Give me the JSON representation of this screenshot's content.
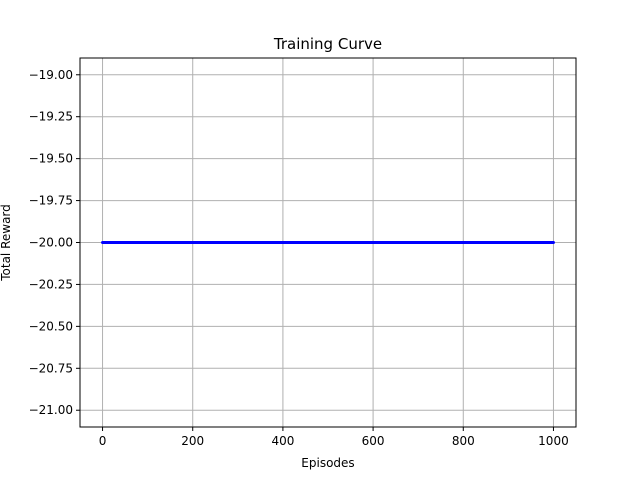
{
  "chart_data": {
    "type": "line",
    "title": "Training Curve",
    "xlabel": "Episodes",
    "ylabel": "Total Reward",
    "xlim": [
      -50,
      1050
    ],
    "ylim": [
      -21.1,
      -18.9
    ],
    "xticks": [
      0,
      200,
      400,
      600,
      800,
      1000
    ],
    "xtick_labels": [
      "0",
      "200",
      "400",
      "600",
      "800",
      "1000"
    ],
    "yticks": [
      -19.0,
      -19.25,
      -19.5,
      -19.75,
      -20.0,
      -20.25,
      -20.5,
      -20.75,
      -21.0
    ],
    "ytick_labels": [
      "−19.00",
      "−19.25",
      "−19.50",
      "−19.75",
      "−20.00",
      "−20.25",
      "−20.50",
      "−20.75",
      "−21.00"
    ],
    "grid": true,
    "series": [
      {
        "color": "#0000ff",
        "x": [
          0,
          1000
        ],
        "y": [
          -20.0,
          -20.0
        ]
      }
    ]
  }
}
